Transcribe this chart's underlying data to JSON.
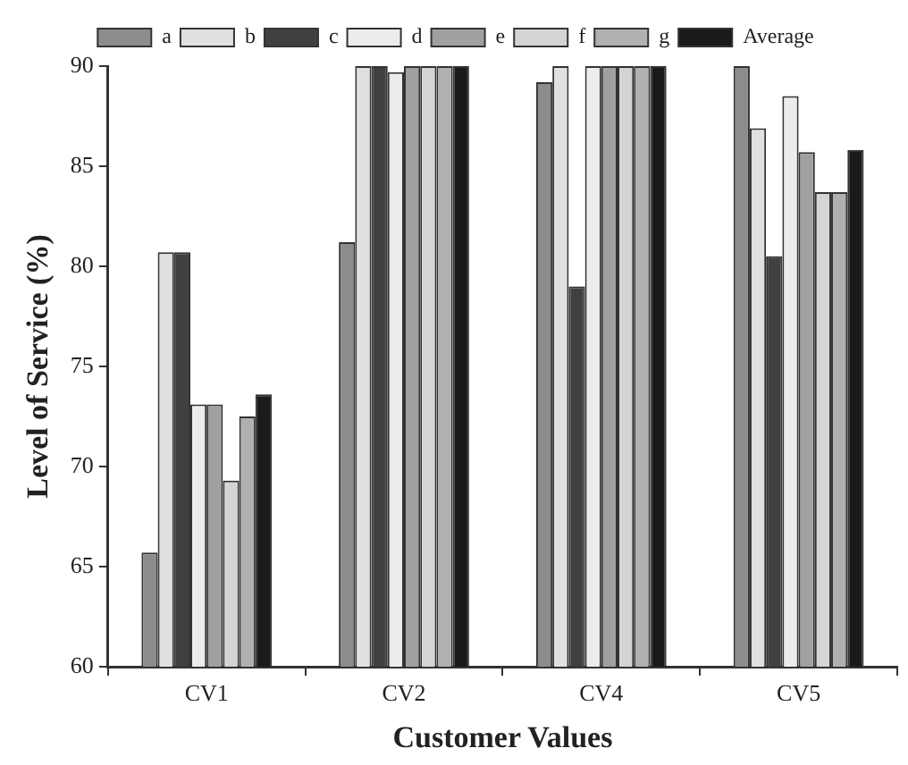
{
  "chart_data": {
    "type": "bar",
    "xlabel": "Customer Values",
    "ylabel": "Level of Service (%)",
    "categories": [
      "CV1",
      "CV2",
      "CV4",
      "CV5"
    ],
    "series": [
      {
        "name": "a",
        "color": "#8c8c8c",
        "values": [
          65.7,
          81.2,
          89.2,
          90
        ]
      },
      {
        "name": "b",
        "color": "#e0e0e0",
        "values": [
          80.7,
          90,
          90,
          86.9
        ]
      },
      {
        "name": "c",
        "color": "#404040",
        "values": [
          80.7,
          90,
          79.0,
          80.5
        ]
      },
      {
        "name": "d",
        "color": "#ececec",
        "values": [
          73.1,
          89.7,
          90,
          88.5
        ]
      },
      {
        "name": "e",
        "color": "#a0a0a0",
        "values": [
          73.1,
          90,
          90,
          85.7
        ]
      },
      {
        "name": "f",
        "color": "#d4d4d4",
        "values": [
          69.3,
          90,
          90,
          83.7
        ]
      },
      {
        "name": "g",
        "color": "#b0b0b0",
        "values": [
          72.5,
          90,
          90,
          83.7
        ]
      },
      {
        "name": "Average",
        "color": "#1a1a1a",
        "values": [
          73.6,
          90,
          90,
          85.8
        ]
      }
    ],
    "ylim": [
      60,
      90
    ],
    "yticks": [
      60,
      65,
      70,
      75,
      80,
      85,
      90
    ],
    "grid": false,
    "legend": "top"
  }
}
